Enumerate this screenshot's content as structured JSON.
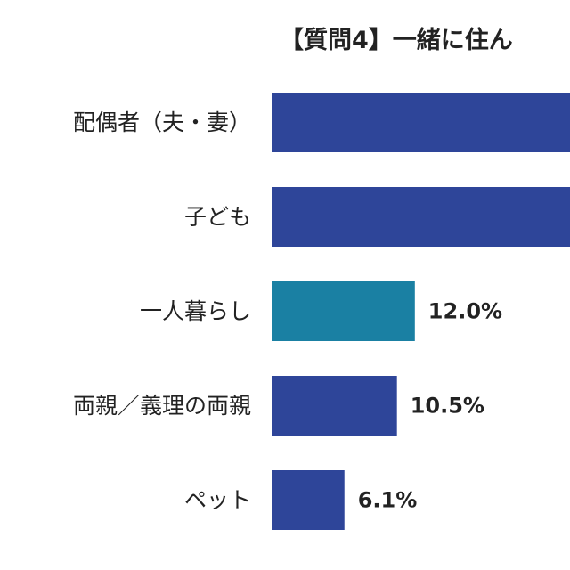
{
  "chart_data": {
    "type": "bar",
    "orientation": "horizontal",
    "title": "【質問4】一緒に住ん",
    "categories": [
      "配偶者（夫・妻）",
      "子ども",
      "一人暮らし",
      "両親／義理の両親",
      "ペット"
    ],
    "values": [
      null,
      null,
      12.0,
      10.5,
      6.1
    ],
    "value_labels": [
      "",
      "",
      "12.0%",
      "10.5%",
      "6.1%"
    ],
    "unit": "%",
    "highlight_index": 2,
    "colors": {
      "bar": "#2e4599",
      "highlight": "#1a80a3",
      "text": "#222222"
    },
    "grid": false,
    "legend": "none"
  }
}
